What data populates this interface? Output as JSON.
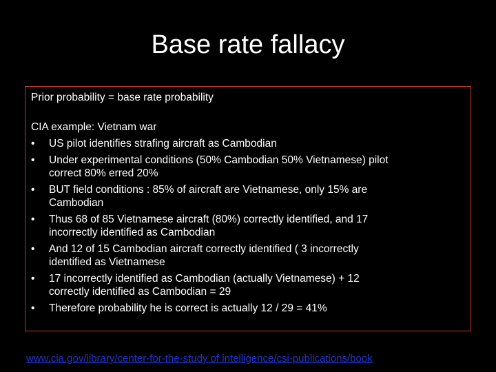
{
  "title": "Base rate fallacy",
  "box": {
    "intro": "Prior probability = base rate probability",
    "example": "CIA example: Vietnam war",
    "bullets": [
      {
        "lines": [
          "US pilot identifies strafing aircraft as Cambodian"
        ]
      },
      {
        "lines": [
          "Under experimental conditions (50% Cambodian 50% Vietnamese) pilot",
          "correct 80% erred 20%"
        ]
      },
      {
        "lines": [
          "BUT field conditions : 85% of aircraft are Vietnamese, only 15% are",
          "Cambodian"
        ]
      },
      {
        "lines": [
          "Thus 68 of 85 Vietnamese aircraft (80%) correctly identified, and 17",
          "incorrectly identified as Cambodian"
        ]
      },
      {
        "lines": [
          "And 12 of 15 Cambodian aircraft correctly identified ( 3 incorrectly",
          "identified as Vietnamese"
        ]
      },
      {
        "lines": [
          "17 incorrectly identified as Cambodian (actually Vietnamese) + 12",
          "correctly identified as Cambodian = 29"
        ]
      },
      {
        "lines": [
          "Therefore probability he is correct is actually 12 / 29 = 41%"
        ]
      }
    ]
  },
  "link": "www.cia.gov/library/center-for-the-study of intelligence/csi-publications/book"
}
